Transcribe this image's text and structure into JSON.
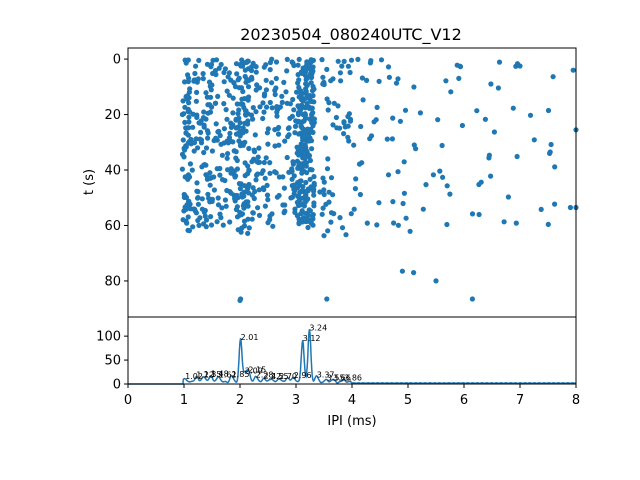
{
  "chart_data": [
    {
      "type": "scatter",
      "title": "20230504_080240UTC_V12",
      "xlabel": "",
      "ylabel": "t (s)",
      "xlim": [
        0,
        8
      ],
      "ylim": [
        93,
        -4
      ],
      "y_inverted": true,
      "yticks": [
        0,
        20,
        40,
        60,
        80
      ],
      "color": "#1f77b4",
      "x_columns": [
        {
          "center": 1.05,
          "spread": 0.08,
          "count": 70,
          "tmin": 0,
          "tmax": 62
        },
        {
          "center": 1.32,
          "spread": 0.18,
          "count": 80,
          "tmin": 0,
          "tmax": 61
        },
        {
          "center": 1.65,
          "spread": 0.2,
          "count": 80,
          "tmin": 0,
          "tmax": 61
        },
        {
          "center": 2.02,
          "spread": 0.15,
          "count": 130,
          "tmin": 0,
          "tmax": 63
        },
        {
          "center": 2.45,
          "spread": 0.25,
          "count": 90,
          "tmin": 0,
          "tmax": 63
        },
        {
          "center": 3.1,
          "spread": 0.08,
          "count": 120,
          "tmin": 0,
          "tmax": 61
        },
        {
          "center": 3.25,
          "spread": 0.08,
          "count": 110,
          "tmin": 0,
          "tmax": 61
        },
        {
          "center": 2.85,
          "spread": 0.2,
          "count": 60,
          "tmin": 0,
          "tmax": 61
        },
        {
          "center": 3.7,
          "spread": 0.3,
          "count": 60,
          "tmin": 0,
          "tmax": 64
        },
        {
          "center": 4.5,
          "spread": 0.5,
          "count": 40,
          "tmin": 0,
          "tmax": 62
        },
        {
          "center": 6.3,
          "spread": 1.4,
          "count": 55,
          "tmin": 0,
          "tmax": 63
        }
      ],
      "extra_points": [
        {
          "x": 2.01,
          "y": 86.5
        },
        {
          "x": 2.0,
          "y": 87
        },
        {
          "x": 3.55,
          "y": 86.5
        },
        {
          "x": 4.9,
          "y": 76.5
        },
        {
          "x": 5.1,
          "y": 77
        },
        {
          "x": 5.5,
          "y": 80
        },
        {
          "x": 6.15,
          "y": 86.5
        },
        {
          "x": 7.0,
          "y": 2.5
        },
        {
          "x": 7.95,
          "y": 4
        },
        {
          "x": 8.0,
          "y": 25.5
        },
        {
          "x": 7.9,
          "y": 53.5
        },
        {
          "x": 8.0,
          "y": 53.5
        }
      ]
    },
    {
      "type": "line",
      "title": "",
      "xlabel": "IPI (ms)",
      "ylabel": "",
      "xlim": [
        0,
        8
      ],
      "ylim": [
        0,
        140
      ],
      "xticks": [
        0,
        1,
        2,
        3,
        4,
        5,
        6,
        7,
        8
      ],
      "yticks": [
        0,
        50,
        100
      ],
      "color": "#1f77b4",
      "peaks": [
        {
          "x": 1.02,
          "y": 8
        },
        {
          "x": 1.22,
          "y": 12
        },
        {
          "x": 1.35,
          "y": 13
        },
        {
          "x": 1.48,
          "y": 14
        },
        {
          "x": 1.62,
          "y": 12
        },
        {
          "x": 1.85,
          "y": 13
        },
        {
          "x": 2.01,
          "y": 90
        },
        {
          "x": 2.09,
          "y": 20
        },
        {
          "x": 2.15,
          "y": 22
        },
        {
          "x": 2.28,
          "y": 12
        },
        {
          "x": 2.42,
          "y": 8
        },
        {
          "x": 2.55,
          "y": 8
        },
        {
          "x": 2.7,
          "y": 8
        },
        {
          "x": 2.85,
          "y": 10
        },
        {
          "x": 2.96,
          "y": 10
        },
        {
          "x": 3.12,
          "y": 88
        },
        {
          "x": 3.24,
          "y": 110
        },
        {
          "x": 3.37,
          "y": 12
        },
        {
          "x": 3.55,
          "y": 5
        },
        {
          "x": 3.66,
          "y": 5
        },
        {
          "x": 3.86,
          "y": 5
        }
      ],
      "peak_labels": [
        {
          "x": 1.02,
          "y": 8,
          "text": "1.02"
        },
        {
          "x": 1.22,
          "y": 12,
          "text": "1.22"
        },
        {
          "x": 1.35,
          "y": 13,
          "text": "1.35"
        },
        {
          "x": 1.48,
          "y": 14,
          "text": "1.48"
        },
        {
          "x": 1.62,
          "y": 12,
          "text": "1.62"
        },
        {
          "x": 1.85,
          "y": 13,
          "text": "1.85"
        },
        {
          "x": 2.01,
          "y": 90,
          "text": "2.01"
        },
        {
          "x": 2.09,
          "y": 20,
          "text": "2.09"
        },
        {
          "x": 2.15,
          "y": 22,
          "text": "2.15"
        },
        {
          "x": 2.28,
          "y": 12,
          "text": "2.28"
        },
        {
          "x": 2.42,
          "y": 8,
          "text": "2.42"
        },
        {
          "x": 2.55,
          "y": 8,
          "text": "2.55"
        },
        {
          "x": 2.7,
          "y": 8,
          "text": "2.70"
        },
        {
          "x": 2.96,
          "y": 10,
          "text": "2.96"
        },
        {
          "x": 3.12,
          "y": 88,
          "text": "3.12"
        },
        {
          "x": 3.24,
          "y": 110,
          "text": "3.24"
        },
        {
          "x": 3.37,
          "y": 12,
          "text": "3.37"
        },
        {
          "x": 3.55,
          "y": 5,
          "text": "3.55"
        },
        {
          "x": 3.66,
          "y": 5,
          "text": "3.66"
        },
        {
          "x": 3.86,
          "y": 5,
          "text": "3.86"
        }
      ]
    }
  ]
}
